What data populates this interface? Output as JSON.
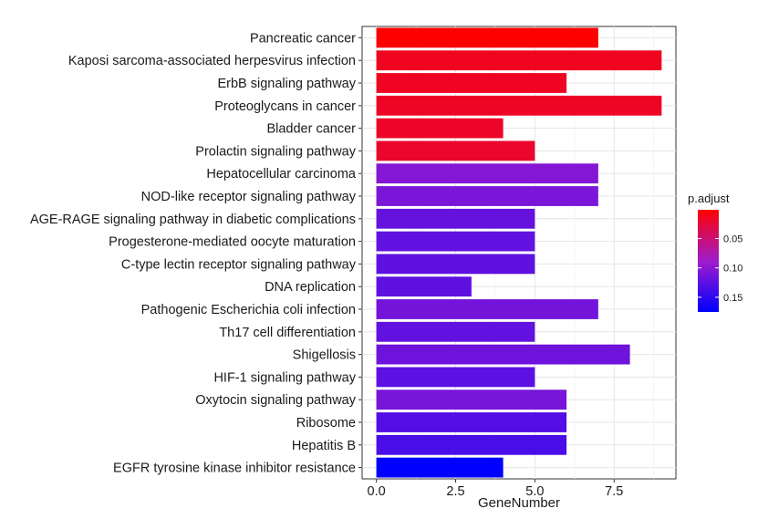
{
  "chart_data": {
    "type": "bar",
    "orientation": "horizontal",
    "xlabel": "GeneNumber",
    "ylabel": "",
    "xlim": [
      -0.45,
      9.45
    ],
    "x_ticks": [
      0,
      2.5,
      5,
      7.5
    ],
    "x_tick_labels": [
      "0.0",
      "2.5",
      "5.0",
      "7.5"
    ],
    "grid": true,
    "categories": [
      "Pancreatic cancer",
      "Kaposi sarcoma-associated herpesvirus infection",
      "ErbB signaling pathway",
      "Proteoglycans in cancer",
      "Bladder cancer",
      "Prolactin signaling pathway",
      "Hepatocellular carcinoma",
      "NOD-like receptor signaling pathway",
      "AGE-RAGE signaling pathway in diabetic complications",
      "Progesterone-mediated oocyte maturation",
      "C-type lectin receptor signaling pathway",
      "DNA replication",
      "Pathogenic Escherichia coli infection",
      "Th17 cell differentiation",
      "Shigellosis",
      "HIF-1 signaling pathway",
      "Oxytocin signaling pathway",
      "Ribosome",
      "Hepatitis B",
      "EGFR tyrosine kinase inhibitor resistance"
    ],
    "values": [
      7,
      9,
      6,
      9,
      4,
      5,
      7,
      7,
      5,
      5,
      5,
      3,
      7,
      5,
      8,
      5,
      6,
      6,
      6,
      4
    ],
    "p_adjust": [
      0.001,
      0.015,
      0.016,
      0.017,
      0.018,
      0.02,
      0.104,
      0.108,
      0.12,
      0.122,
      0.124,
      0.124,
      0.112,
      0.122,
      0.115,
      0.125,
      0.11,
      0.13,
      0.135,
      0.175
    ],
    "legend": {
      "title": "p.adjust",
      "placement": "right",
      "range": [
        0.001,
        0.175
      ],
      "ticks": [
        0.05,
        0.1,
        0.15
      ],
      "tick_labels": [
        "0.05",
        "0.10",
        "0.15"
      ],
      "low_color": "#ff0000",
      "high_color": "#0000ff"
    }
  }
}
